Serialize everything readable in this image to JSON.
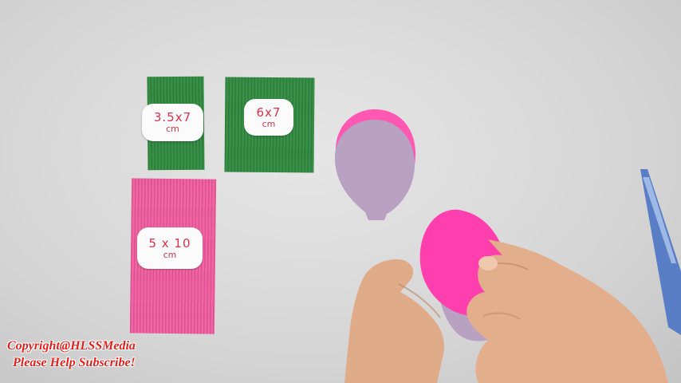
{
  "tags": {
    "green_small": {
      "dim": "3.5x7",
      "unit": "cm"
    },
    "green_large": {
      "dim": "6x7",
      "unit": "cm"
    },
    "pink": {
      "dim": "5 x 10",
      "unit": "cm"
    }
  },
  "watermark": {
    "line1": "Copyright@HLSSMedia",
    "line2": "Please Help Subscribe!"
  },
  "colors": {
    "green_paper": "#2f8a3e",
    "pink_paper": "#f25c9f",
    "petal_pink": "#ff5cb4",
    "petal_lilac": "#b79ec0",
    "label_text": "#d9324a",
    "watermark": "#e3211c"
  }
}
